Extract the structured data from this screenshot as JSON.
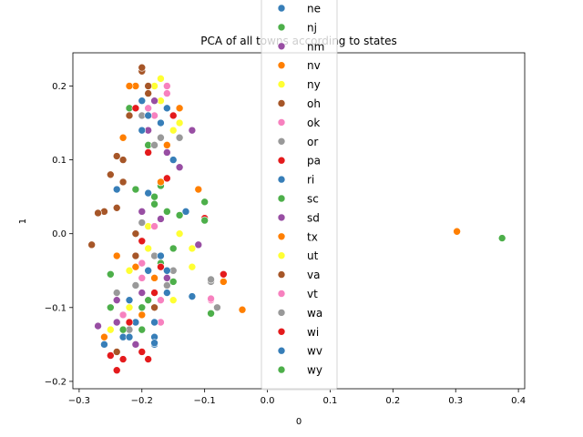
{
  "chart_data": {
    "type": "scatter",
    "title": "PCA of all towns according to states",
    "xlabel": "0",
    "ylabel": "1",
    "xlim": [
      -0.31,
      0.41
    ],
    "ylim": [
      -0.21,
      0.245
    ],
    "xticks": [
      -0.3,
      -0.2,
      -0.1,
      0.0,
      0.1,
      0.2,
      0.3,
      0.4
    ],
    "xtick_labels": [
      "−0.3",
      "−0.2",
      "−0.1",
      "0.0",
      "0.1",
      "0.2",
      "0.3",
      "0.4"
    ],
    "yticks": [
      -0.2,
      -0.1,
      0.0,
      0.1,
      0.2
    ],
    "ytick_labels": [
      "−0.2",
      "−0.1",
      "0.0",
      "0.1",
      "0.2"
    ],
    "grid": false,
    "legend_position": "top-center",
    "series": [
      {
        "name": "ne",
        "color": "#377eb8",
        "points": [
          [
            -0.2,
            0.18
          ],
          [
            -0.17,
            0.15
          ],
          [
            -0.24,
            0.06
          ],
          [
            -0.21,
            -0.12
          ],
          [
            -0.16,
            -0.08
          ],
          [
            -0.18,
            -0.15
          ],
          [
            -0.13,
            0.03
          ],
          [
            -0.19,
            -0.05
          ],
          [
            -0.23,
            -0.14
          ]
        ]
      },
      {
        "name": "nj",
        "color": "#4daf4a",
        "points": [
          [
            -0.18,
            0.05
          ],
          [
            -0.16,
            0.03
          ],
          [
            -0.22,
            0.17
          ],
          [
            -0.17,
            -0.04
          ],
          [
            -0.25,
            -0.1
          ],
          [
            -0.2,
            -0.13
          ],
          [
            -0.15,
            0.16
          ],
          [
            -0.19,
            0.12
          ]
        ]
      },
      {
        "name": "nm",
        "color": "#984ea3",
        "points": [
          [
            -0.19,
            0.14
          ],
          [
            -0.16,
            0.11
          ],
          [
            -0.24,
            -0.12
          ],
          [
            -0.2,
            -0.08
          ],
          [
            -0.17,
            0.02
          ],
          [
            -0.21,
            -0.15
          ],
          [
            -0.14,
            0.09
          ]
        ]
      },
      {
        "name": "nv",
        "color": "#ff7f00",
        "points": [
          [
            -0.21,
            0.2
          ],
          [
            -0.14,
            0.17
          ],
          [
            -0.23,
            0.13
          ],
          [
            -0.18,
            -0.06
          ],
          [
            -0.24,
            -0.03
          ],
          [
            -0.2,
            -0.11
          ],
          [
            -0.16,
            0.12
          ]
        ]
      },
      {
        "name": "ny",
        "color": "#ffff33",
        "points": [
          [
            -0.18,
            0.2
          ],
          [
            -0.15,
            0.14
          ],
          [
            -0.17,
            0.18
          ],
          [
            -0.22,
            -0.1
          ],
          [
            -0.19,
            -0.02
          ],
          [
            -0.14,
            0.0
          ],
          [
            -0.25,
            -0.13
          ]
        ]
      },
      {
        "name": "oh",
        "color": "#a65628",
        "points": [
          [
            -0.2,
            0.22
          ],
          [
            -0.25,
            0.08
          ],
          [
            -0.23,
            0.1
          ],
          [
            -0.26,
            0.03
          ],
          [
            -0.22,
            0.16
          ],
          [
            -0.19,
            0.19
          ],
          [
            -0.21,
            -0.03
          ],
          [
            -0.24,
            -0.16
          ],
          [
            -0.28,
            -0.015
          ]
        ]
      },
      {
        "name": "ok",
        "color": "#f781bf",
        "points": [
          [
            -0.18,
            0.16
          ],
          [
            -0.16,
            0.19
          ],
          [
            -0.2,
            -0.06
          ],
          [
            -0.17,
            -0.09
          ],
          [
            -0.23,
            -0.11
          ],
          [
            -0.09,
            -0.09
          ]
        ]
      },
      {
        "name": "or",
        "color": "#999999",
        "points": [
          [
            -0.17,
            0.13
          ],
          [
            -0.2,
            0.16
          ],
          [
            -0.18,
            -0.03
          ],
          [
            -0.21,
            -0.07
          ],
          [
            -0.15,
            -0.05
          ],
          [
            -0.22,
            -0.13
          ],
          [
            -0.09,
            -0.065
          ]
        ]
      },
      {
        "name": "pa",
        "color": "#e41a1c",
        "points": [
          [
            -0.19,
            0.11
          ],
          [
            -0.15,
            0.16
          ],
          [
            -0.2,
            -0.01
          ],
          [
            -0.18,
            -0.08
          ],
          [
            -0.23,
            -0.17
          ],
          [
            -0.24,
            -0.185
          ],
          [
            -0.2,
            -0.16
          ],
          [
            -0.07,
            -0.055
          ],
          [
            -0.1,
            0.02
          ]
        ]
      },
      {
        "name": "ri",
        "color": "#377eb8",
        "points": [
          [
            -0.16,
            0.17
          ],
          [
            -0.2,
            0.14
          ],
          [
            -0.19,
            0.055
          ],
          [
            -0.17,
            -0.03
          ],
          [
            -0.22,
            -0.14
          ],
          [
            -0.18,
            -0.14
          ],
          [
            -0.12,
            -0.085
          ]
        ]
      },
      {
        "name": "sc",
        "color": "#4daf4a",
        "points": [
          [
            -0.17,
            0.065
          ],
          [
            -0.21,
            0.06
          ],
          [
            -0.15,
            -0.02
          ],
          [
            -0.19,
            -0.09
          ],
          [
            -0.25,
            -0.055
          ],
          [
            -0.09,
            -0.108
          ],
          [
            -0.1,
            0.043
          ]
        ]
      },
      {
        "name": "sd",
        "color": "#984ea3",
        "points": [
          [
            -0.18,
            0.18
          ],
          [
            -0.12,
            0.14
          ],
          [
            -0.2,
            0.03
          ],
          [
            -0.16,
            -0.06
          ],
          [
            -0.24,
            -0.09
          ],
          [
            -0.27,
            -0.125
          ],
          [
            -0.11,
            -0.015
          ]
        ]
      },
      {
        "name": "tx",
        "color": "#ff7f00",
        "points": [
          [
            0.302,
            0.003
          ],
          [
            -0.22,
            0.2
          ],
          [
            -0.17,
            0.07
          ],
          [
            -0.21,
            -0.045
          ],
          [
            -0.26,
            -0.14
          ],
          [
            -0.04,
            -0.103
          ],
          [
            -0.07,
            -0.065
          ],
          [
            -0.11,
            0.06
          ]
        ]
      },
      {
        "name": "ut",
        "color": "#ffff33",
        "points": [
          [
            -0.17,
            0.21
          ],
          [
            -0.14,
            0.15
          ],
          [
            -0.19,
            0.01
          ],
          [
            -0.15,
            -0.09
          ],
          [
            -0.22,
            -0.05
          ],
          [
            -0.12,
            -0.045
          ],
          [
            -0.12,
            -0.02
          ]
        ]
      },
      {
        "name": "va",
        "color": "#a65628",
        "points": [
          [
            -0.2,
            0.225
          ],
          [
            -0.24,
            0.105
          ],
          [
            -0.23,
            0.07
          ],
          [
            -0.27,
            0.028
          ],
          [
            -0.24,
            0.035
          ],
          [
            -0.21,
            0.0
          ],
          [
            -0.18,
            -0.1
          ],
          [
            -0.19,
            0.2
          ]
        ]
      },
      {
        "name": "vt",
        "color": "#f781bf",
        "points": [
          [
            -0.16,
            0.2
          ],
          [
            -0.19,
            0.17
          ],
          [
            -0.18,
            0.01
          ],
          [
            -0.2,
            -0.04
          ],
          [
            -0.17,
            -0.12
          ],
          [
            -0.09,
            -0.088
          ]
        ]
      },
      {
        "name": "wa",
        "color": "#999999",
        "points": [
          [
            -0.18,
            0.12
          ],
          [
            -0.14,
            0.13
          ],
          [
            -0.2,
            0.015
          ],
          [
            -0.16,
            -0.07
          ],
          [
            -0.24,
            -0.08
          ],
          [
            -0.08,
            -0.1
          ],
          [
            -0.09,
            -0.062
          ]
        ]
      },
      {
        "name": "wi",
        "color": "#e41a1c",
        "points": [
          [
            -0.16,
            0.075
          ],
          [
            -0.21,
            0.17
          ],
          [
            -0.17,
            -0.045
          ],
          [
            -0.22,
            -0.12
          ],
          [
            -0.25,
            -0.165
          ],
          [
            -0.19,
            -0.17
          ],
          [
            -0.07,
            -0.055
          ],
          [
            -0.1,
            0.021
          ]
        ]
      },
      {
        "name": "wv",
        "color": "#377eb8",
        "points": [
          [
            -0.19,
            0.16
          ],
          [
            -0.15,
            0.1
          ],
          [
            -0.22,
            -0.09
          ],
          [
            -0.18,
            -0.12
          ],
          [
            -0.26,
            -0.15
          ],
          [
            -0.18,
            -0.148
          ],
          [
            -0.16,
            -0.05
          ]
        ]
      },
      {
        "name": "wy",
        "color": "#4daf4a",
        "points": [
          [
            0.374,
            -0.006
          ],
          [
            -0.18,
            0.04
          ],
          [
            -0.14,
            0.025
          ],
          [
            -0.2,
            -0.1
          ],
          [
            -0.23,
            -0.13
          ],
          [
            -0.15,
            -0.065
          ],
          [
            -0.1,
            0.018
          ]
        ]
      }
    ]
  }
}
